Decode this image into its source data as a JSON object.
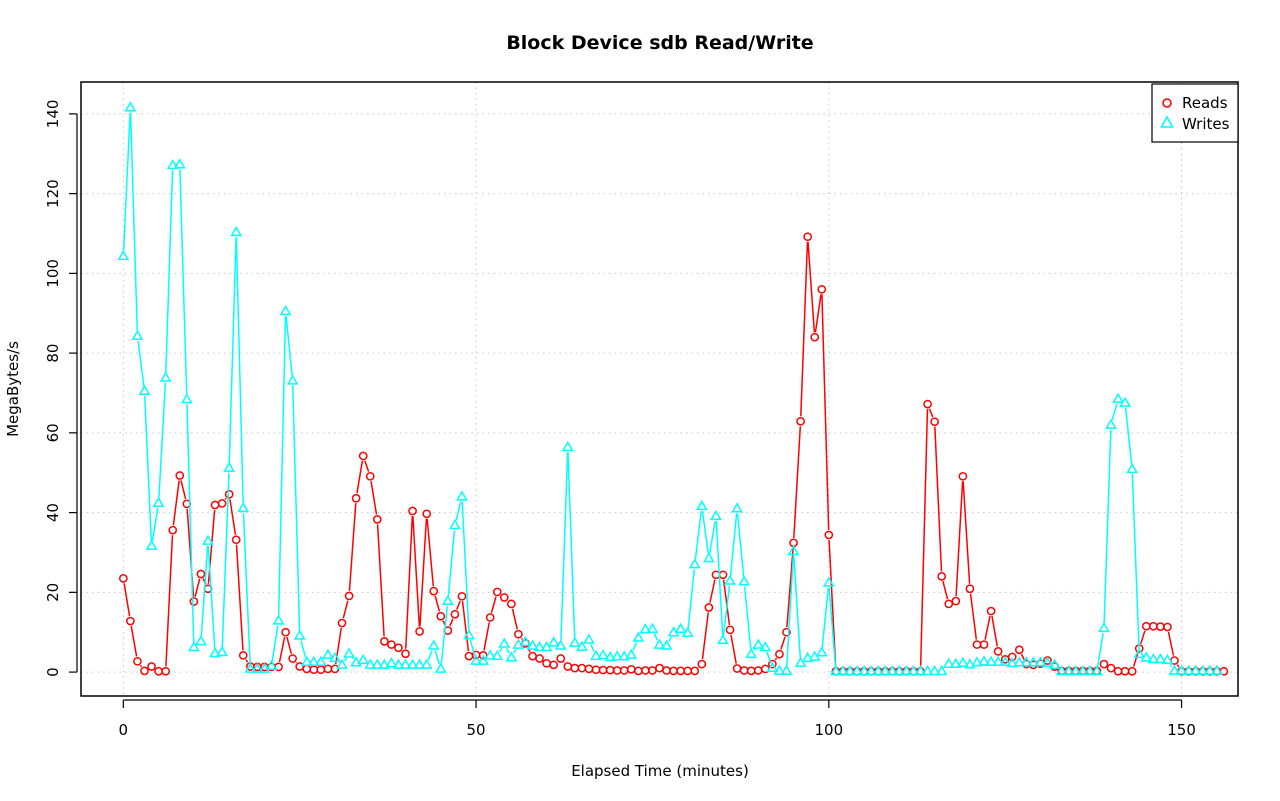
{
  "chart_data": {
    "type": "line",
    "title": "Block Device sdb Read/Write",
    "xlabel": "Elapsed Time (minutes)",
    "ylabel": "MegaBytes/s",
    "xlim": [
      -6,
      158
    ],
    "ylim": [
      -6,
      148
    ],
    "xticks": [
      0,
      50,
      100,
      150
    ],
    "yticks": [
      0,
      20,
      40,
      60,
      80,
      100,
      120,
      140
    ],
    "grid": true,
    "legend_position": "top-right",
    "series": [
      {
        "name": "Reads",
        "color": "#ff0000",
        "marker": "circle",
        "values": [
          23.5,
          12.8,
          2.7,
          0.3,
          1.4,
          0.2,
          0.2,
          35.6,
          49.3,
          42.2,
          17.7,
          24.6,
          20.9,
          41.9,
          42.3,
          44.6,
          33.2,
          4.2,
          1.4,
          1.3,
          1.3,
          1.3,
          1.3,
          10.0,
          3.4,
          1.4,
          0.8,
          0.6,
          0.6,
          0.8,
          0.8,
          12.3,
          19.1,
          43.6,
          54.2,
          49.1,
          38.3,
          7.7,
          6.9,
          6.1,
          4.6,
          40.4,
          10.2,
          39.7,
          20.3,
          14.0,
          10.4,
          14.5,
          19.0,
          4.0,
          4.3,
          4.2,
          13.7,
          20.1,
          18.7,
          17.1,
          9.5,
          7.2,
          4.0,
          3.4,
          2.2,
          1.8,
          3.4,
          1.4,
          1.0,
          1.0,
          0.8,
          0.6,
          0.5,
          0.5,
          0.4,
          0.4,
          0.7,
          0.3,
          0.4,
          0.4,
          1.0,
          0.4,
          0.3,
          0.3,
          0.3,
          0.3,
          2.0,
          16.2,
          24.4,
          24.4,
          10.6,
          0.9,
          0.4,
          0.3,
          0.4,
          0.8,
          2.0,
          4.5,
          10.0,
          32.4,
          62.9,
          109.2,
          84.0,
          96.0,
          34.4,
          0.2,
          0.2,
          0.2,
          0.2,
          0.2,
          0.2,
          0.2,
          0.2,
          0.2,
          0.2,
          0.2,
          0.2,
          0.2,
          67.2,
          62.8,
          24.0,
          17.1,
          17.8,
          49.1,
          20.9,
          6.9,
          6.9,
          15.3,
          5.2,
          3.2,
          3.8,
          5.6,
          2.0,
          1.8,
          2.1,
          2.9,
          1.4,
          0.3,
          0.3,
          0.3,
          0.3,
          0.3,
          0.3,
          2.0,
          1.0,
          0.2,
          0.2,
          0.2,
          5.9,
          11.5,
          11.5,
          11.4,
          11.3,
          2.9,
          0.2,
          0.2,
          0.2,
          0.2,
          0.2,
          0.2,
          0.2
        ]
      },
      {
        "name": "Writes",
        "color": "#00ffff",
        "marker": "triangle",
        "values": [
          104.3,
          141.6,
          84.3,
          70.5,
          31.6,
          42.4,
          73.8,
          127.1,
          127.3,
          68.4,
          6.2,
          7.7,
          32.9,
          4.7,
          5.0,
          51.2,
          110.3,
          41.1,
          0.8,
          0.8,
          0.8,
          1.5,
          12.9,
          90.5,
          73.1,
          9.1,
          2.5,
          2.5,
          2.5,
          4.3,
          3.5,
          1.8,
          4.6,
          2.4,
          3.0,
          1.8,
          1.8,
          1.8,
          2.2,
          1.8,
          1.8,
          1.8,
          1.8,
          1.8,
          6.6,
          0.8,
          17.8,
          36.8,
          44.0,
          9.2,
          2.8,
          2.8,
          4.1,
          4.0,
          7.1,
          3.6,
          6.8,
          7.5,
          6.6,
          6.2,
          6.2,
          7.4,
          6.6,
          56.4,
          7.3,
          6.3,
          8.1,
          4.0,
          4.2,
          3.7,
          3.9,
          3.9,
          4.3,
          8.6,
          10.7,
          10.8,
          6.8,
          6.6,
          9.9,
          10.8,
          9.8,
          27.0,
          41.6,
          28.5,
          39.1,
          8.0,
          22.9,
          41.0,
          22.7,
          4.5,
          6.8,
          6.2,
          1.0,
          0.3,
          0.3,
          30.3,
          2.3,
          3.5,
          3.8,
          4.9,
          22.4,
          0.2,
          0.2,
          0.2,
          0.2,
          0.2,
          0.2,
          0.2,
          0.2,
          0.2,
          0.2,
          0.2,
          0.2,
          0.2,
          0.2,
          0.2,
          0.2,
          2.0,
          2.0,
          2.3,
          1.9,
          2.4,
          2.6,
          2.5,
          2.5,
          2.5,
          2.2,
          2.4,
          2.4,
          2.4,
          2.4,
          2.3,
          1.8,
          0.2,
          0.2,
          0.2,
          0.2,
          0.2,
          0.2,
          11.0,
          62.0,
          68.5,
          67.5,
          50.9,
          4.5,
          3.6,
          3.2,
          3.2,
          3.0,
          0.3,
          0.3,
          0.3,
          0.3,
          0.3,
          0.3,
          0.3
        ]
      }
    ]
  }
}
